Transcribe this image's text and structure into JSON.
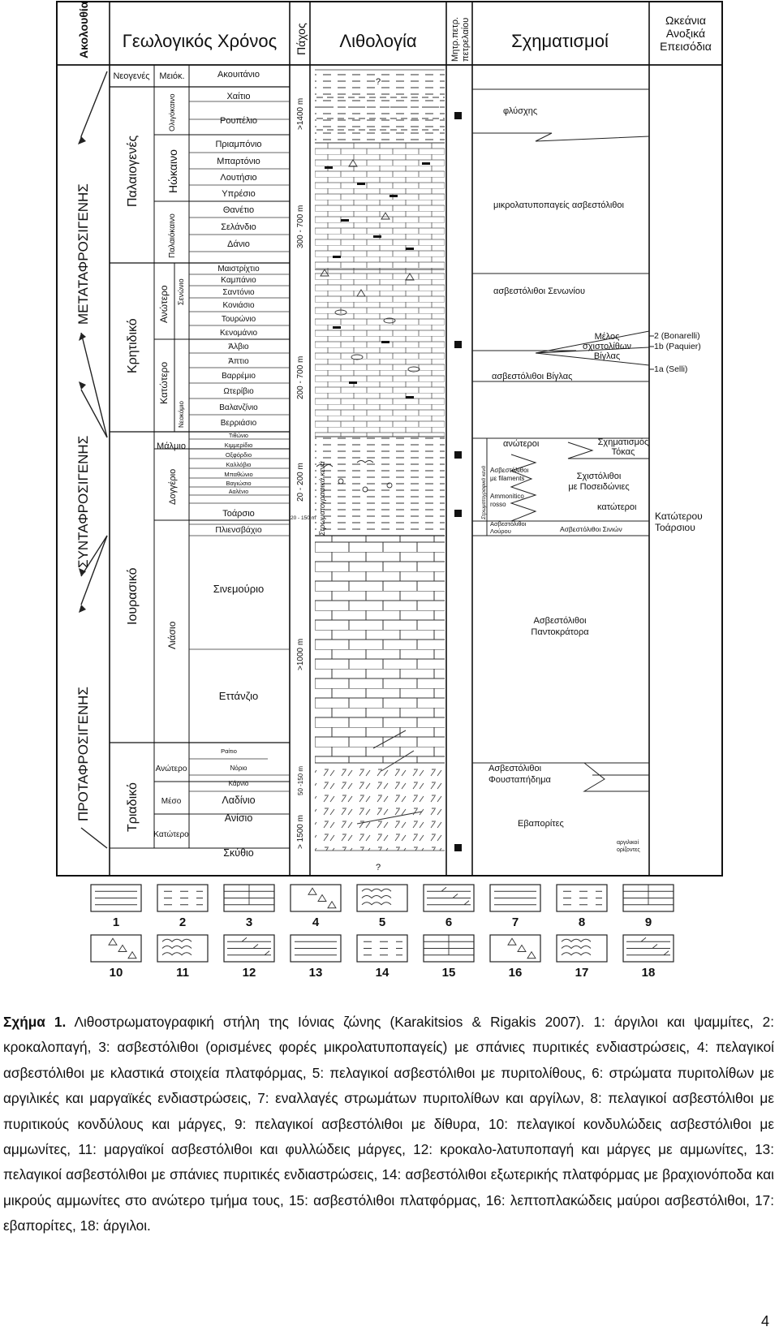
{
  "header": {
    "sequence": "Ακολουθία",
    "geologic_time": "Γεωλογικός Χρόνος",
    "thickness": "Πάχος",
    "lithology": "Λιθολογία",
    "source_rocks": [
      "Μητρ.πετρ.",
      "πετρελαίου"
    ],
    "formations": "Σχηματισμοί",
    "oceanic_events": [
      "Ωκεάνια",
      "Ανοξικά",
      "Επεισόδια"
    ]
  },
  "sequences": [
    "ΜΕΤΑΤΑΦΡΟΣΙΓΕΝΗΣ",
    "ΣΥΝΤΑΦΡΟΣΙΓΕΝΗΣ",
    "ΠΡΟΤΑΦΡΟΣΙΓΕΝΗΣ"
  ],
  "periods": [
    {
      "name": "Νεογενές"
    },
    {
      "name": "Παλαιογενές"
    },
    {
      "name": "Κρητιδικό"
    },
    {
      "name": "Ιουρασικό"
    },
    {
      "name": "Τριαδικό"
    }
  ],
  "epochs": [
    {
      "name": "Μειόκ."
    },
    {
      "name": "Ολιγόκαινο"
    },
    {
      "name": "Ηώκαινο"
    },
    {
      "name": "Παλαιόκαινο"
    },
    {
      "name": "Ανώτερο"
    },
    {
      "name": "Σενώνιο"
    },
    {
      "name": "Κατώτερο"
    },
    {
      "name": "Νεοκόμιο"
    },
    {
      "name": "Μάλμιο"
    },
    {
      "name": "Δογγέριο"
    },
    {
      "name": "Λιάσιο"
    },
    {
      "name": "Ανώτερο"
    },
    {
      "name": "Μέσο"
    },
    {
      "name": "Κατώτερο"
    }
  ],
  "stages": [
    "Ακουιτάνιο",
    "Χαίτιο",
    "Ρουπέλιο",
    "Πριαμπόνιο",
    "Μπαρτόνιο",
    "Λουτήσιο",
    "Υπρέσιο",
    "Θανέτιο",
    "Σελάνδιο",
    "Δάνιο",
    "Μαιστρίχτιο",
    "Καμπάνιο",
    "Σαντόνιο",
    "Κονιάσιο",
    "Τουρώνιο",
    "Κενομάνιο",
    "Άλβιο",
    "Άπτιο",
    "Βαρρέμιο",
    "Ωτερίβιο",
    "Βαλανζίνιο",
    "Βερριάσιο",
    "Τιθώνιο",
    "Κιμμερίδιο",
    "Οξφόρδιο",
    "Καλλόβιο",
    "Μπαθώνιο",
    "Βαγιώσιο",
    "Ααλένιο",
    "Τοάρσιο",
    "Πλιενσβάχιο",
    "Σινεμούριο",
    "Εττάνζιο",
    "Ραίτιο",
    "Νόριο",
    "Κάρνιο",
    "Λαδίνιο",
    "Ανίσιο",
    "Σκύθιο"
  ],
  "thicknesses": [
    ">1400 m",
    "300 - 700 m",
    "200 - 700 m",
    "20 - 200 m",
    "20 - 150 m",
    ">1000 m",
    "50 -150 m",
    "> 1500 m"
  ],
  "lithology_notes": {
    "unknown": "?",
    "gaps": "Στρωματογραφικά κενά"
  },
  "formations": {
    "flysch": "φλύσχης",
    "microbioclastic": "μικρολατυποπαγείς ασβεστόλιθοι",
    "senonian": "ασβεστόλιθοι Σενωνίου",
    "vigla_member": [
      "Μέλος",
      "σχιστολίθων",
      "Βίγλας"
    ],
    "vigla": "ασβεστόλιθοι Βίγλας",
    "upper": "ανώτεροι",
    "tokas": [
      "Σχηματισμός",
      "Τόκας"
    ],
    "gaps_label": "Στρωματογραφικά κενά",
    "filaments": [
      "Ασβεστόλιθοι",
      "με filaments"
    ],
    "posidonia": [
      "Σχιστόλιθοι",
      "με Ποσειδώνιες"
    ],
    "ammonitico": [
      "Ammonitico",
      "rosso"
    ],
    "lower": "κατώτεροι",
    "louros": [
      "Ασβεστόλιθοι",
      "Λούρου"
    ],
    "siniae": "Ασβεστόλιθοι Σινιών",
    "pantokrator": [
      "Ασβεστόλιθοι",
      "Παντοκράτορα"
    ],
    "foustapidima": [
      "Ασβεστόλιθοι",
      "Φουσταπήδημα"
    ],
    "evaporites": "Εβαπορίτες",
    "clay_horizons": [
      "αργιλικοί",
      "ορίζοντες"
    ]
  },
  "events": [
    "2 (Bonarelli)",
    "1b (Paquier)",
    "1a (Selli)",
    "Κατώτερου",
    "Τοάρσιου"
  ],
  "legend_numbers": [
    "1",
    "2",
    "3",
    "4",
    "5",
    "6",
    "7",
    "8",
    "9",
    "10",
    "11",
    "12",
    "13",
    "14",
    "15",
    "16",
    "17",
    "18"
  ],
  "caption": {
    "label": "Σχήμα 1.",
    "text": " Λιθοστρωματογραφική στήλη της Ιόνιας ζώνης (Karakitsios & Rigakis 2007). 1: άργιλοι και ψαμμίτες, 2: κροκαλοπαγή, 3: ασβεστόλιθοι (ορισμένες φορές μικρολατυποπαγείς) με σπάνιες πυριτικές ενδιαστρώσεις, 4: πελαγικοί ασβεστόλιθοι με κλαστικά στοιχεία πλατφόρμας, 5: πελαγικοί ασβεστόλιθοι με πυριτολίθους, 6: στρώματα πυριτολίθων με αργιλικές και μαργαϊκές ενδιαστρώσεις, 7: εναλλαγές στρωμάτων πυριτολίθων και αργίλων, 8: πελαγικοί ασβεστόλιθοι με πυριτικούς κονδύλους και μάργες, 9: πελαγικοί ασβεστόλιθοι με δίθυρα, 10: πελαγικοί κονδυλώδεις ασβεστόλιθοι με αμμωνίτες, 11: μαργαϊκοί ασβεστόλιθοι και φυλλώδεις μάργες, 12: κροκαλο-λατυποπαγή και μάργες με αμμωνίτες, 13: πελαγικοί ασβεστόλιθοι με σπάνιες πυριτικές ενδιαστρώσεις, 14: ασβεστόλιθοι εξωτερικής πλατφόρμας με βραχιονόποδα και μικρούς αμμωνίτες στο ανώτερο τμήμα τους, 15: ασβεστόλιθοι πλατφόρμας, 16: λεπτοπλακώδεις μαύροι ασβεστόλιθοι, 17: εβαπορίτες, 18: άργιλοι."
  },
  "page_number": "4"
}
